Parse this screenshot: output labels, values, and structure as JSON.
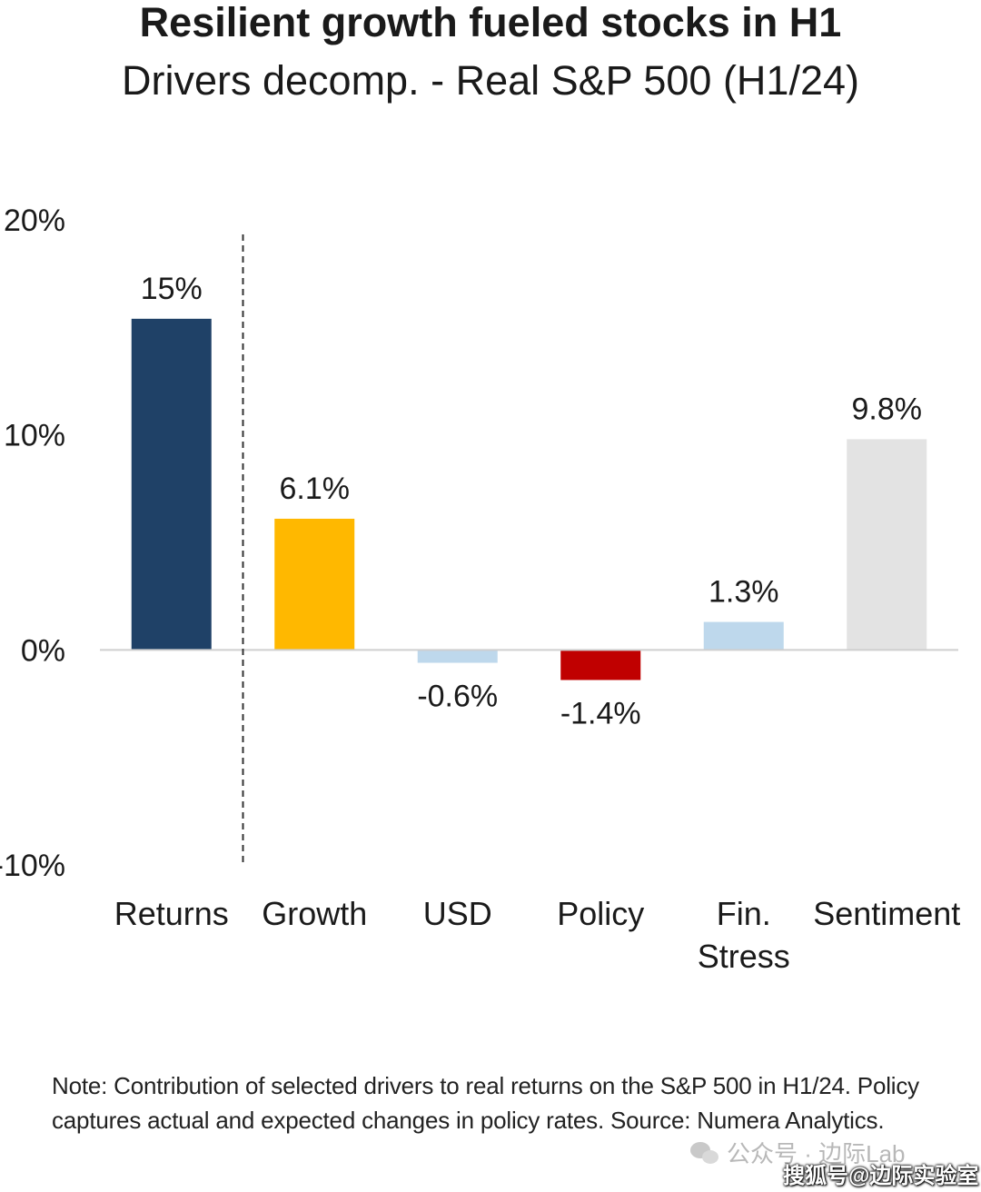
{
  "header": {
    "title": "Resilient growth fueled stocks in H1",
    "subtitle": "Drivers decomp. - Real S&P 500 (H1/24)"
  },
  "chart_data": {
    "type": "bar",
    "title": "Resilient growth fueled stocks in H1",
    "subtitle": "Drivers decomp. - Real S&P 500 (H1/24)",
    "categories": [
      "Returns",
      "Growth",
      "USD",
      "Policy",
      "Fin. Stress",
      "Sentiment"
    ],
    "category_lines": [
      [
        "Returns"
      ],
      [
        "Growth"
      ],
      [
        "USD"
      ],
      [
        "Policy"
      ],
      [
        "Fin.",
        "Stress"
      ],
      [
        "Sentiment"
      ]
    ],
    "values": [
      15.4,
      6.1,
      -0.6,
      -1.4,
      1.3,
      9.8
    ],
    "data_labels": [
      "15%",
      "6.1%",
      "-0.6%",
      "-1.4%",
      "1.3%",
      "9.8%"
    ],
    "colors": [
      "#1f4167",
      "#ffb800",
      "#bed8ec",
      "#c00000",
      "#bed8ec",
      "#e3e3e3"
    ],
    "ylim": [
      -10,
      20
    ],
    "yticks": [
      -10,
      0,
      10,
      20
    ],
    "ytick_labels": [
      "-10%",
      "0%",
      "10%",
      "20%"
    ],
    "separator_after_category": "Returns",
    "xlabel": "",
    "ylabel": ""
  },
  "footer": {
    "note": "Note: Contribution of selected drivers to real returns on the S&P 500 in H1/24. Policy captures actual and expected changes in policy rates. Source: Numera Analytics.",
    "watermark": "公众号 · 边际Lab",
    "source_mark": "搜狐号@边际实验室"
  }
}
